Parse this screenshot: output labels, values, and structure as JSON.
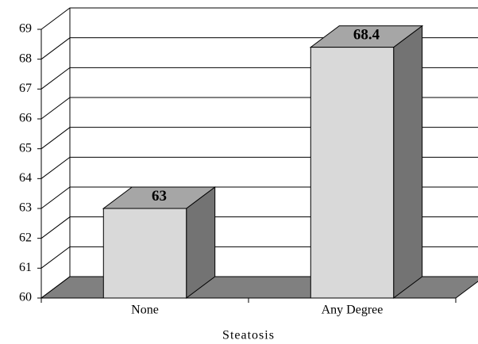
{
  "chart_data": {
    "type": "bar3d",
    "x_label": "Steatosis",
    "categories": [
      "None",
      "Any Degree"
    ],
    "values": [
      63,
      68.4
    ],
    "color": "#d9d9d9",
    "side_color": "#737373",
    "top_color": "#a6a6a6",
    "floor_color": "#808080",
    "ylim": [
      60,
      69
    ],
    "yticks": [
      60,
      61,
      62,
      63,
      64,
      65,
      66,
      67,
      68,
      69
    ],
    "grid": true
  }
}
